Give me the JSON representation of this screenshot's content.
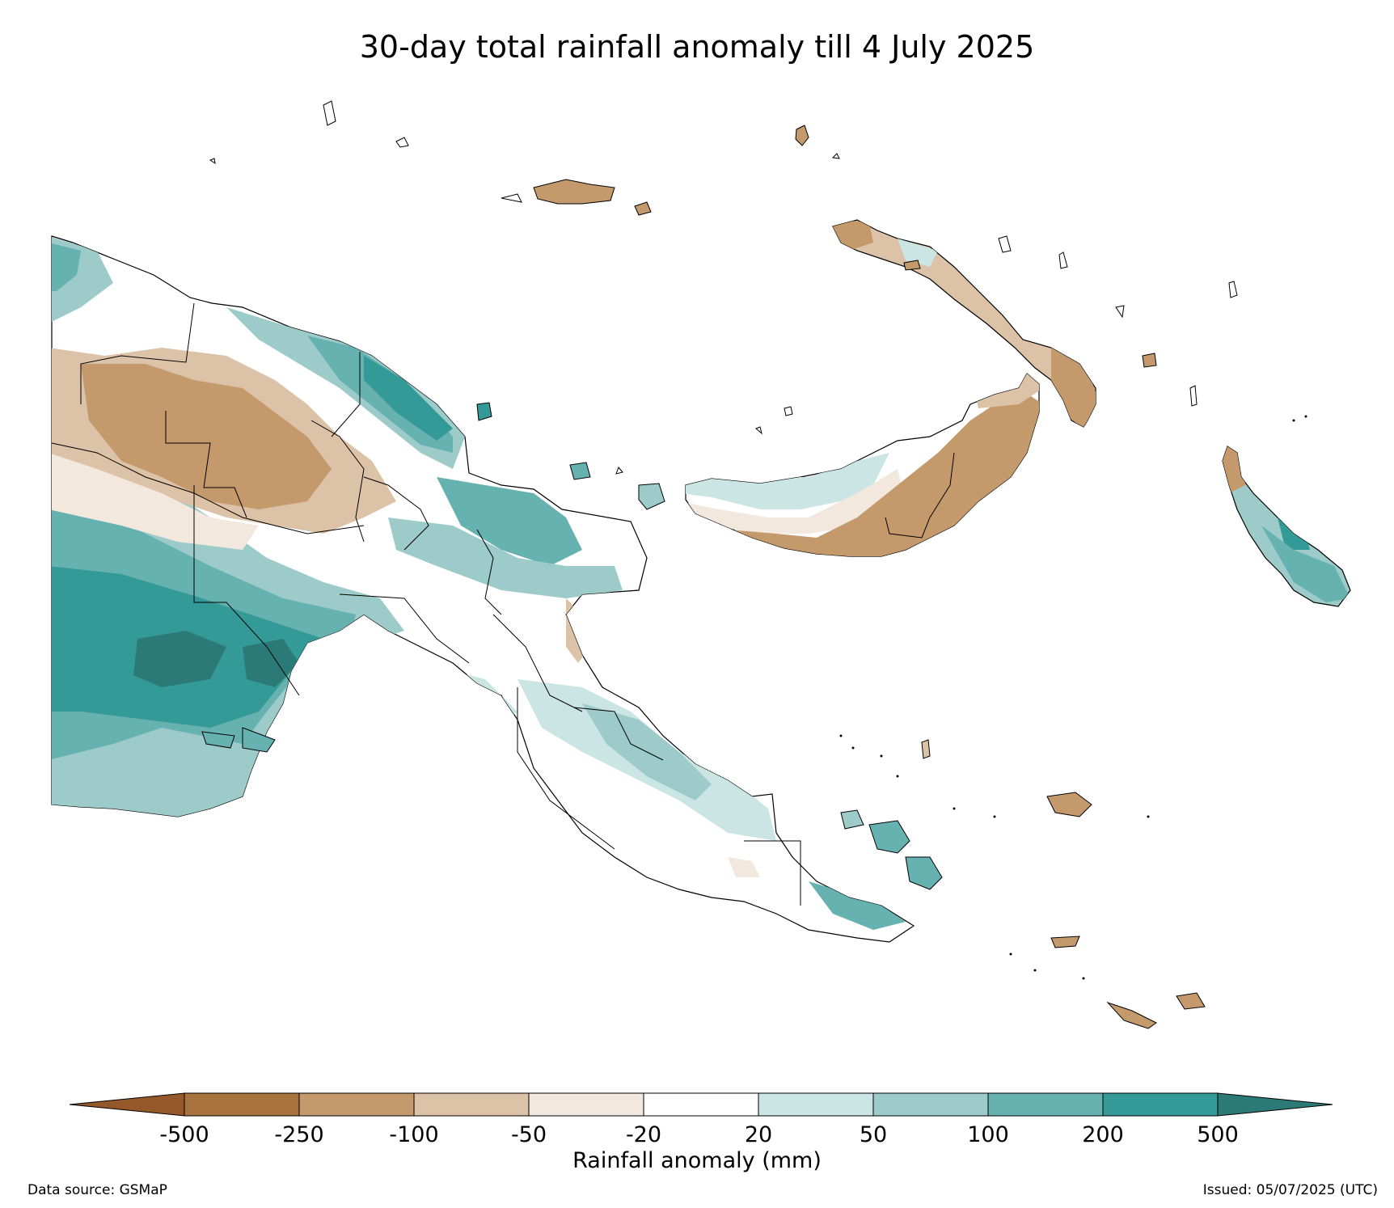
{
  "title": "30-day total rainfall anomaly till 4 July 2025",
  "colorbar": {
    "label": "Rainfall anomaly (mm)",
    "ticks": [
      "-500",
      "-250",
      "-100",
      "-50",
      "-20",
      "20",
      "50",
      "100",
      "200",
      "500"
    ],
    "extend_low_color": "#94582a",
    "extend_high_color": "#2b7a78",
    "bins": [
      {
        "from": "-500",
        "to": "-250",
        "color": "#a8733e"
      },
      {
        "from": "-250",
        "to": "-100",
        "color": "#c49a6c"
      },
      {
        "from": "-100",
        "to": "-50",
        "color": "#dcc2a6"
      },
      {
        "from": "-50",
        "to": "-20",
        "color": "#f2e8de"
      },
      {
        "from": "-20",
        "to": "20",
        "color": "#ffffff"
      },
      {
        "from": "20",
        "to": "50",
        "color": "#cbe5e4"
      },
      {
        "from": "50",
        "to": "100",
        "color": "#9ccbca"
      },
      {
        "from": "100",
        "to": "200",
        "color": "#66b2b0"
      },
      {
        "from": "200",
        "to": "500",
        "color": "#339a97"
      }
    ]
  },
  "footer": {
    "source": "Data source: GSMaP",
    "issued": "Issued: 05/07/2025 (UTC)"
  },
  "map": {
    "region": "Papua New Guinea",
    "boundary_color": "#000000"
  }
}
